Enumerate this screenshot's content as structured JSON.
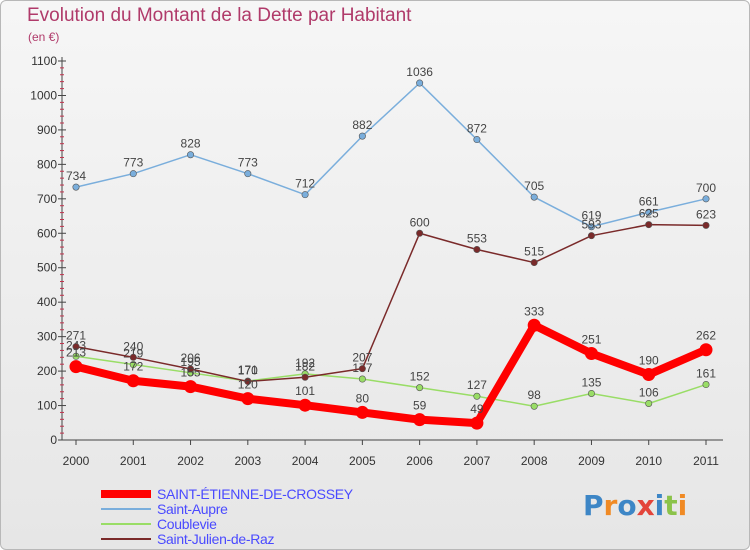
{
  "title": "Evolution du Montant de la Dette par Habitant",
  "unit_label": "(en €)",
  "logo_text": "Proxiti",
  "logo_colors": [
    "#3d86c6",
    "#f08a24",
    "#3d86c6",
    "#e3443a",
    "#3d86c6",
    "#8bc34a",
    "#f08a24"
  ],
  "chart_data": {
    "type": "line",
    "title": "Evolution du Montant de la Dette par Habitant",
    "ylabel": "(en €)",
    "xlabel": "",
    "x": [
      "2000",
      "2001",
      "2002",
      "2003",
      "2004",
      "2005",
      "2006",
      "2007",
      "2008",
      "2009",
      "2010",
      "2011"
    ],
    "ylim": [
      0,
      1100
    ],
    "yticks": [
      0,
      100,
      200,
      300,
      400,
      500,
      600,
      700,
      800,
      900,
      1000,
      1100
    ],
    "grid": false,
    "legend_position": "bottom-left",
    "series": [
      {
        "name": "SAINT-ÉTIENNE-DE-CROSSEY",
        "color": "#ff0000",
        "emphasis": "bold",
        "values": [
          213,
          172,
          155,
          120,
          101,
          80,
          59,
          49,
          333,
          251,
          190,
          262
        ]
      },
      {
        "name": "Saint-Aupre",
        "color": "#7aaedc",
        "values": [
          734,
          773,
          828,
          773,
          712,
          882,
          1036,
          872,
          705,
          619,
          661,
          700
        ]
      },
      {
        "name": "Coublevie",
        "color": "#99dd66",
        "values": [
          243,
          219,
          195,
          171,
          192,
          177,
          152,
          127,
          98,
          135,
          106,
          161
        ]
      },
      {
        "name": "Saint-Julien-de-Raz",
        "color": "#7a2a2a",
        "values": [
          271,
          240,
          206,
          170,
          182,
          207,
          600,
          553,
          515,
          593,
          625,
          623
        ]
      }
    ]
  }
}
